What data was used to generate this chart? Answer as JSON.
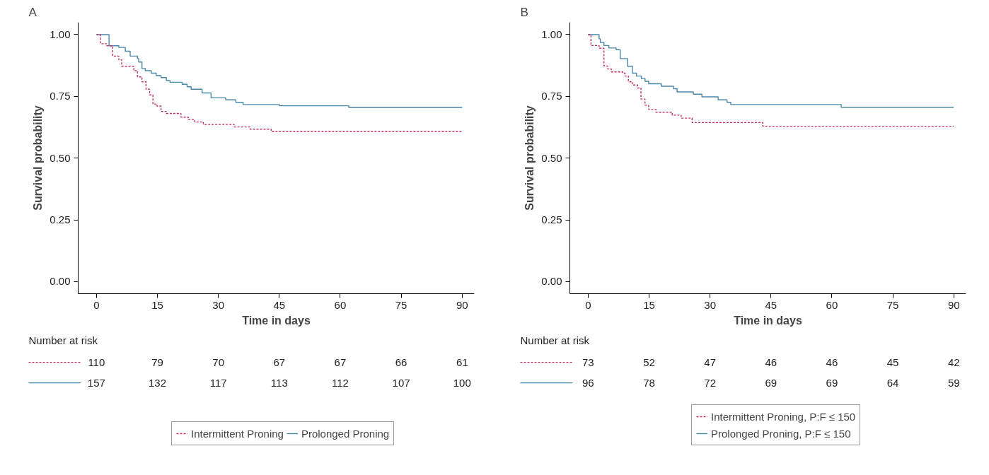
{
  "chart_data": [
    {
      "type": "step",
      "title": "A",
      "xlabel": "Time in days",
      "ylabel": "Survival probability",
      "xlim": [
        -4.5,
        93
      ],
      "ylim": [
        -0.05,
        1.05
      ],
      "xticks": [
        0,
        15,
        30,
        45,
        60,
        75,
        90
      ],
      "yticks": [
        {
          "value": 0,
          "label": "0.00"
        },
        {
          "value": 0.25,
          "label": "0.25"
        },
        {
          "value": 0.5,
          "label": "0.50"
        },
        {
          "value": 0.75,
          "label": "0.75"
        },
        {
          "value": 1,
          "label": "1.00"
        }
      ],
      "grid": false,
      "legend": "bottom",
      "series": [
        {
          "name": "Intermittent Proning",
          "color": "#c0305f",
          "line_style": "dashed",
          "x": [
            0,
            1.0,
            2.5,
            4.0,
            5.5,
            6.2,
            9.2,
            10.1,
            11.2,
            12.2,
            13.1,
            13.9,
            14.9,
            15.9,
            17.2,
            20.8,
            22.6,
            24.2,
            26.3,
            33.9,
            37.8,
            43.0,
            90
          ],
          "values": [
            1.0,
            0.963,
            0.955,
            0.913,
            0.898,
            0.872,
            0.854,
            0.829,
            0.809,
            0.779,
            0.756,
            0.719,
            0.711,
            0.689,
            0.681,
            0.666,
            0.656,
            0.646,
            0.636,
            0.626,
            0.617,
            0.608,
            0.608
          ]
        },
        {
          "name": "Prolonged Proning",
          "color": "#4a86a8",
          "line_style": "solid",
          "x": [
            0,
            3.1,
            5.5,
            7.1,
            8.3,
            10.1,
            10.4,
            11.2,
            12.0,
            13.5,
            14.7,
            15.9,
            17.2,
            18.1,
            21.1,
            22.3,
            23.3,
            26.0,
            28.2,
            31.8,
            34.3,
            36.1,
            45.0,
            62.1,
            90
          ],
          "values": [
            1.0,
            0.955,
            0.948,
            0.933,
            0.913,
            0.903,
            0.889,
            0.863,
            0.854,
            0.844,
            0.834,
            0.826,
            0.814,
            0.807,
            0.799,
            0.789,
            0.779,
            0.764,
            0.744,
            0.736,
            0.726,
            0.717,
            0.712,
            0.705,
            0.705
          ]
        }
      ],
      "annotations": [
        "Number at risk",
        "110",
        "79",
        "70",
        "67",
        "67",
        "66",
        "61",
        "157",
        "132",
        "117",
        "113",
        "112",
        "107",
        "100"
      ]
    },
    {
      "type": "step",
      "title": "B",
      "xlabel": "Time in days",
      "ylabel": "Survival probability",
      "xlim": [
        -4.5,
        93
      ],
      "ylim": [
        -0.05,
        1.05
      ],
      "xticks": [
        0,
        15,
        30,
        45,
        60,
        75,
        90
      ],
      "yticks": [
        {
          "value": 0,
          "label": "0.00"
        },
        {
          "value": 0.25,
          "label": "0.25"
        },
        {
          "value": 0.5,
          "label": "0.50"
        },
        {
          "value": 0.75,
          "label": "0.75"
        },
        {
          "value": 1,
          "label": "1.00"
        }
      ],
      "grid": false,
      "legend": "bottom",
      "series": [
        {
          "name": "Intermittent Proning, P:F ≤ 150",
          "color": "#c0305f",
          "line_style": "dashed",
          "x": [
            0,
            0.7,
            2.7,
            3.9,
            4.8,
            5.7,
            8.5,
            9.1,
            9.9,
            10.9,
            12.2,
            13.0,
            14.0,
            14.9,
            16.7,
            20.7,
            22.9,
            25.6,
            43.0,
            90
          ],
          "values": [
            1.0,
            0.956,
            0.945,
            0.873,
            0.861,
            0.849,
            0.844,
            0.832,
            0.809,
            0.796,
            0.784,
            0.739,
            0.714,
            0.697,
            0.686,
            0.674,
            0.662,
            0.644,
            0.629,
            0.629
          ]
        },
        {
          "name": "Prolonged Proning, P:F ≤ 150",
          "color": "#4a86a8",
          "line_style": "solid",
          "x": [
            0,
            2.7,
            3.0,
            3.9,
            5.1,
            6.9,
            7.9,
            9.7,
            10.9,
            11.9,
            13.1,
            14.0,
            14.9,
            18.0,
            21.0,
            21.9,
            25.9,
            28.0,
            32.0,
            34.2,
            35.1,
            62.3,
            90
          ],
          "values": [
            1.0,
            0.983,
            0.968,
            0.956,
            0.946,
            0.939,
            0.903,
            0.872,
            0.844,
            0.832,
            0.822,
            0.811,
            0.801,
            0.791,
            0.781,
            0.768,
            0.759,
            0.748,
            0.736,
            0.726,
            0.717,
            0.706,
            0.706
          ]
        }
      ],
      "annotations": [
        "Number at risk",
        "73",
        "52",
        "47",
        "46",
        "46",
        "45",
        "42",
        "96",
        "78",
        "72",
        "69",
        "69",
        "64",
        "59"
      ]
    }
  ]
}
